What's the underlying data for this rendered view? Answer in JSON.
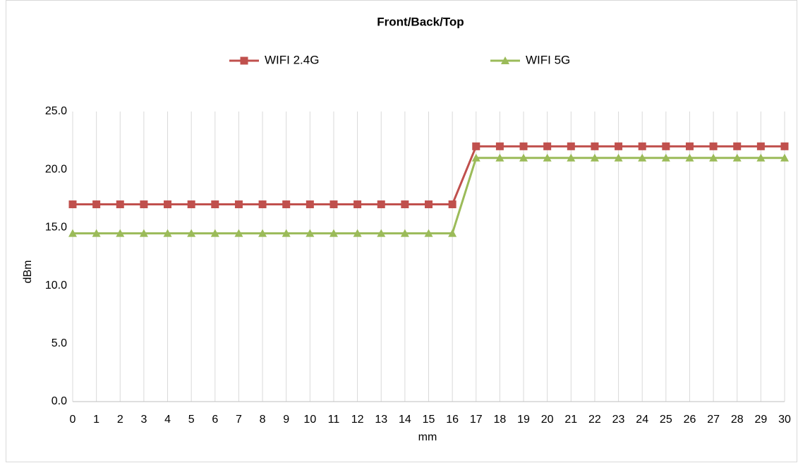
{
  "chart_data": {
    "type": "line",
    "title": "Front/Back/Top",
    "xlabel": "mm",
    "ylabel": "dBm",
    "x": [
      0,
      1,
      2,
      3,
      4,
      5,
      6,
      7,
      8,
      9,
      10,
      11,
      12,
      13,
      14,
      15,
      16,
      17,
      18,
      19,
      20,
      21,
      22,
      23,
      24,
      25,
      26,
      27,
      28,
      29,
      30
    ],
    "series": [
      {
        "name": "WIFI 2.4G",
        "color": "#c0504d",
        "marker": "square",
        "values": [
          17,
          17,
          17,
          17,
          17,
          17,
          17,
          17,
          17,
          17,
          17,
          17,
          17,
          17,
          17,
          17,
          17,
          22,
          22,
          22,
          22,
          22,
          22,
          22,
          22,
          22,
          22,
          22,
          22,
          22,
          22
        ]
      },
      {
        "name": "WIFI 5G",
        "color": "#9bbb59",
        "marker": "triangle",
        "values": [
          14.5,
          14.5,
          14.5,
          14.5,
          14.5,
          14.5,
          14.5,
          14.5,
          14.5,
          14.5,
          14.5,
          14.5,
          14.5,
          14.5,
          14.5,
          14.5,
          14.5,
          21,
          21,
          21,
          21,
          21,
          21,
          21,
          21,
          21,
          21,
          21,
          21,
          21,
          21
        ]
      }
    ],
    "xlim": [
      0,
      30
    ],
    "xticks": [
      0,
      1,
      2,
      3,
      4,
      5,
      6,
      7,
      8,
      9,
      10,
      11,
      12,
      13,
      14,
      15,
      16,
      17,
      18,
      19,
      20,
      21,
      22,
      23,
      24,
      25,
      26,
      27,
      28,
      29,
      30
    ],
    "ylim": [
      0,
      25
    ],
    "yticks": [
      {
        "value": 0,
        "label": "0.0"
      },
      {
        "value": 5,
        "label": "5.0"
      },
      {
        "value": 10,
        "label": "10.0"
      },
      {
        "value": 15,
        "label": "15.0"
      },
      {
        "value": 20,
        "label": "20.0"
      },
      {
        "value": 25,
        "label": "25.0"
      }
    ],
    "grid": "x",
    "legend": "top"
  }
}
